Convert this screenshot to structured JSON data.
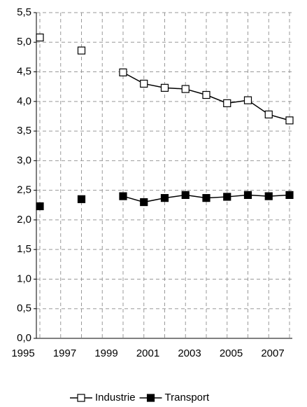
{
  "chart_data": {
    "type": "line",
    "x": [
      1995,
      1996,
      1997,
      1998,
      1999,
      2000,
      2001,
      2002,
      2003,
      2004,
      2005,
      2006,
      2007
    ],
    "series": [
      {
        "name": "Industrie",
        "color": "#000000",
        "marker": "open-square",
        "values": [
          5.08,
          null,
          4.86,
          null,
          4.49,
          4.3,
          4.23,
          4.21,
          4.11,
          3.97,
          4.02,
          3.78,
          3.68
        ]
      },
      {
        "name": "Transport",
        "color": "#000000",
        "marker": "filled-square",
        "values": [
          2.23,
          null,
          2.35,
          null,
          2.4,
          2.3,
          2.37,
          2.42,
          2.37,
          2.39,
          2.42,
          2.4,
          2.42
        ]
      }
    ],
    "xlim": [
      1995,
      2007
    ],
    "xticks": [
      1995,
      1997,
      1999,
      2001,
      2003,
      2005,
      2007
    ],
    "ylim": [
      0,
      5.5
    ],
    "yticks": [
      {
        "value": 0,
        "label": "0,0"
      },
      {
        "value": 0.5,
        "label": "0,5"
      },
      {
        "value": 1,
        "label": "1,0"
      },
      {
        "value": 1.5,
        "label": "1,5"
      },
      {
        "value": 2,
        "label": "2,0"
      },
      {
        "value": 2.5,
        "label": "2,5"
      },
      {
        "value": 3,
        "label": "3,0"
      },
      {
        "value": 3.5,
        "label": "3,5"
      },
      {
        "value": 4,
        "label": "4,0"
      },
      {
        "value": 4.5,
        "label": "4,5"
      },
      {
        "value": 5,
        "label": "5,0"
      },
      {
        "value": 5.5,
        "label": "5,5"
      }
    ],
    "grid": true,
    "legend": "bottom"
  }
}
